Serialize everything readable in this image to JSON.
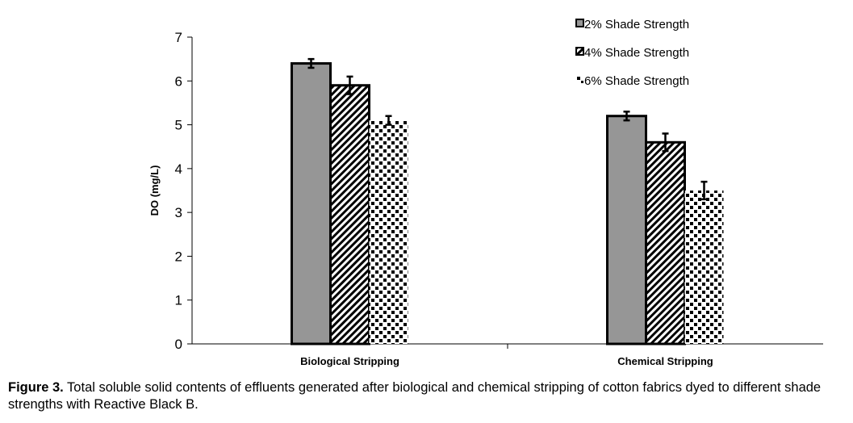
{
  "chart_data": {
    "type": "bar",
    "title": "",
    "xlabel": "",
    "ylabel": "DO (mg/L)",
    "ylim": [
      0,
      7
    ],
    "yticks": [
      "0",
      "1",
      "2",
      "3",
      "4",
      "5",
      "6",
      "7"
    ],
    "categories": [
      "Biological Stripping",
      "Chemical Stripping"
    ],
    "series": [
      {
        "name": "2% Shade Strength",
        "values": [
          6.4,
          5.2
        ],
        "errors": [
          0.1,
          0.1
        ],
        "pattern": "solid",
        "color": "#969696"
      },
      {
        "name": "4% Shade Strength",
        "values": [
          5.9,
          4.6
        ],
        "errors": [
          0.2,
          0.2
        ],
        "pattern": "diagonal",
        "color": "#000000"
      },
      {
        "name": "6% Shade Strength",
        "values": [
          5.1,
          3.5
        ],
        "errors": [
          0.1,
          0.2
        ],
        "pattern": "dots",
        "color": "#000000"
      }
    ],
    "legend_position": "top-right",
    "grid": false
  },
  "caption": {
    "label": "Figure 3.",
    "text": " Total soluble solid contents of effluents generated after biological and chemical stripping of cotton fabrics dyed to different shade strengths with Reactive Black B."
  }
}
